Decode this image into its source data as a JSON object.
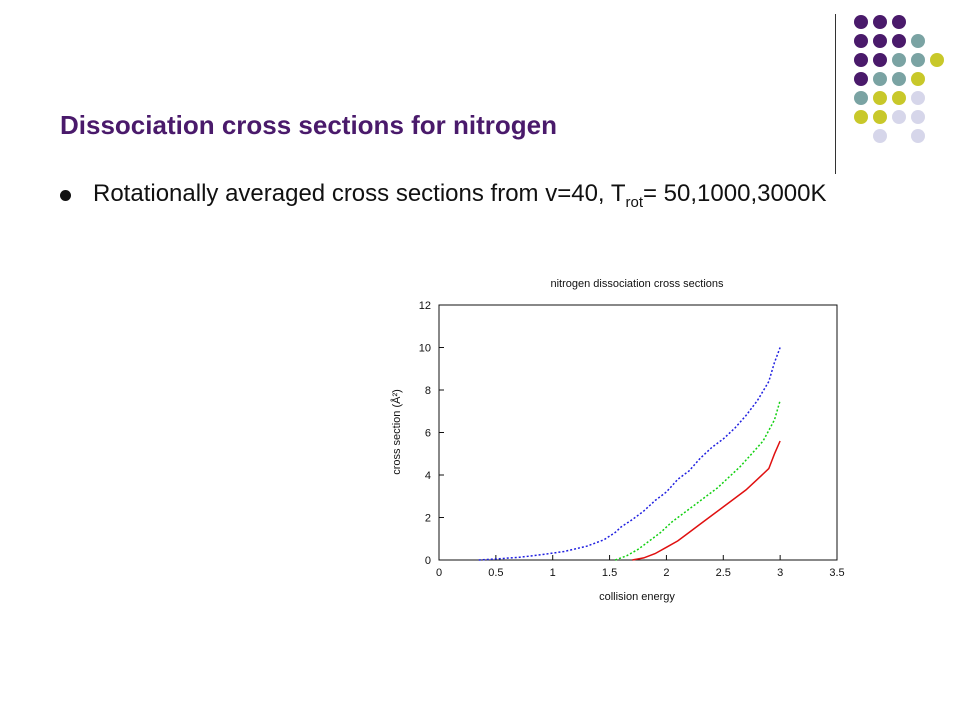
{
  "slide": {
    "title": "Dissociation cross sections for nitrogen",
    "bullet": {
      "text_before_sub": "Rotationally averaged cross sections from v=40, T",
      "subscript": "rot",
      "text_after_sub": "= 50,1000,3000K"
    },
    "colors": {
      "title": "#4a1a6b",
      "dot_purple": "#4a1a6b",
      "dot_teal": "#7aa3a3",
      "dot_yellow": "#c8c82a",
      "dot_lavender": "#d6d6ea"
    }
  },
  "chart_data": {
    "type": "line",
    "title": "nitrogen dissociation cross sections",
    "xlabel": "collision energy",
    "ylabel": "cross section (Å²)",
    "xlim": [
      0,
      3.5
    ],
    "ylim": [
      0,
      12
    ],
    "xticks": [
      "0",
      "0.5",
      "1",
      "1.5",
      "2",
      "2.5",
      "3",
      "3.5"
    ],
    "yticks": [
      "0",
      "2",
      "4",
      "6",
      "8",
      "10",
      "12"
    ],
    "grid": false,
    "series": [
      {
        "color": "#2020e0",
        "dash": "dotted",
        "x": [
          0.35,
          0.5,
          0.7,
          0.9,
          1.1,
          1.3,
          1.45,
          1.55,
          1.6,
          1.7,
          1.8,
          1.9,
          2.0,
          2.1,
          2.2,
          2.3,
          2.4,
          2.5,
          2.6,
          2.7,
          2.8,
          2.9,
          2.95,
          3.0
        ],
        "y": [
          0.0,
          0.05,
          0.12,
          0.25,
          0.4,
          0.65,
          0.95,
          1.3,
          1.55,
          1.9,
          2.3,
          2.8,
          3.2,
          3.8,
          4.2,
          4.8,
          5.3,
          5.7,
          6.2,
          6.8,
          7.5,
          8.4,
          9.3,
          10.0
        ]
      },
      {
        "color": "#10d010",
        "dash": "dotted",
        "x": [
          1.55,
          1.65,
          1.75,
          1.85,
          1.95,
          2.05,
          2.15,
          2.25,
          2.35,
          2.45,
          2.55,
          2.65,
          2.75,
          2.85,
          2.95,
          3.0
        ],
        "y": [
          0.0,
          0.2,
          0.5,
          0.9,
          1.3,
          1.8,
          2.2,
          2.6,
          3.0,
          3.4,
          3.9,
          4.4,
          5.0,
          5.6,
          6.6,
          7.5
        ]
      },
      {
        "color": "#e01010",
        "dash": "solid",
        "x": [
          1.7,
          1.8,
          1.9,
          2.0,
          2.1,
          2.2,
          2.3,
          2.4,
          2.5,
          2.6,
          2.7,
          2.8,
          2.9,
          2.95,
          3.0
        ],
        "y": [
          0.0,
          0.1,
          0.3,
          0.6,
          0.9,
          1.3,
          1.7,
          2.1,
          2.5,
          2.9,
          3.3,
          3.8,
          4.3,
          5.0,
          5.6
        ]
      }
    ]
  }
}
